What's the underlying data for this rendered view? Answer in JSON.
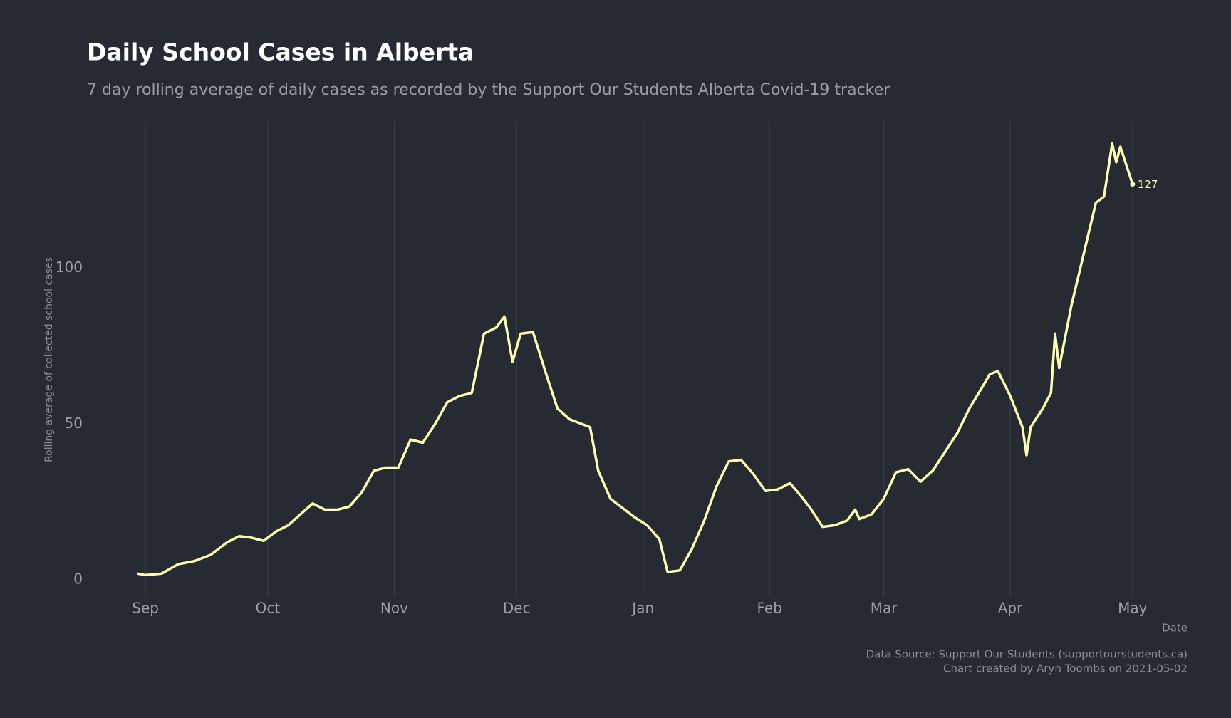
{
  "chart_data": {
    "type": "line",
    "title": "Daily School Cases in Alberta",
    "subtitle": "7 day rolling average of daily cases as recorded by the Support Our Students Alberta Covid-19 tracker",
    "x_label": "Date",
    "y_label": "Rolling average of collected school cases",
    "caption": [
      "Data Source: Support Our Students (supportourstudents.ca)",
      "Chart created by Aryn Toombs on 2021-05-02"
    ],
    "x": [
      -2,
      0,
      4,
      8,
      12,
      16,
      20,
      23,
      26,
      29,
      32,
      35,
      38,
      41,
      44,
      47,
      50,
      53,
      56,
      59,
      62,
      65,
      68,
      71,
      74,
      77,
      80,
      83,
      86,
      88,
      90,
      92,
      95,
      98,
      101,
      104,
      107,
      109,
      111,
      114,
      117,
      120,
      123,
      126,
      128,
      131,
      134,
      137,
      140,
      143,
      146,
      149,
      152,
      155,
      158,
      160,
      163,
      166,
      169,
      172,
      174,
      175,
      178,
      181,
      184,
      187,
      190,
      193,
      196,
      199,
      202,
      205,
      207,
      209,
      212,
      215,
      216,
      217,
      220,
      222,
      223,
      224,
      227,
      229,
      231,
      233,
      235,
      237,
      238,
      239,
      242
    ],
    "series": [
      {
        "name": "Rolling average",
        "color": "#ffffb0",
        "values": [
          2,
          1.5,
          2,
          5,
          6,
          8,
          12,
          14,
          13.5,
          12.5,
          15.5,
          17.5,
          21,
          24.5,
          22.5,
          22.5,
          23.5,
          28,
          35,
          36,
          36,
          45,
          44,
          50,
          57,
          59,
          60,
          79,
          81,
          84.5,
          70,
          79,
          79.5,
          67,
          55,
          51.5,
          50,
          49,
          35,
          26,
          23,
          20,
          17.5,
          13,
          2.5,
          3,
          10,
          19,
          30,
          38,
          38.5,
          34,
          28.5,
          29,
          31,
          28,
          23,
          17,
          17.5,
          19,
          22.5,
          19.5,
          21,
          26,
          34.5,
          35.5,
          31.5,
          35,
          41,
          47,
          55,
          61.5,
          66,
          67,
          59,
          49,
          40,
          49,
          55,
          60,
          79,
          68,
          88,
          99,
          110,
          121,
          123,
          140,
          134,
          139,
          127
        ]
      }
    ],
    "xlim": [
      -14,
      256
    ],
    "xticks": [
      {
        "value": 0,
        "label": "Sep"
      },
      {
        "value": 30,
        "label": "Oct"
      },
      {
        "value": 61,
        "label": "Nov"
      },
      {
        "value": 91,
        "label": "Dec"
      },
      {
        "value": 122,
        "label": "Jan"
      },
      {
        "value": 153,
        "label": "Feb"
      },
      {
        "value": 181,
        "label": "Mar"
      },
      {
        "value": 212,
        "label": "Apr"
      },
      {
        "value": 242,
        "label": "May"
      }
    ],
    "ylim": [
      -5.5,
      147
    ],
    "yticks": [
      0,
      50,
      100
    ],
    "grid": "x"
  }
}
